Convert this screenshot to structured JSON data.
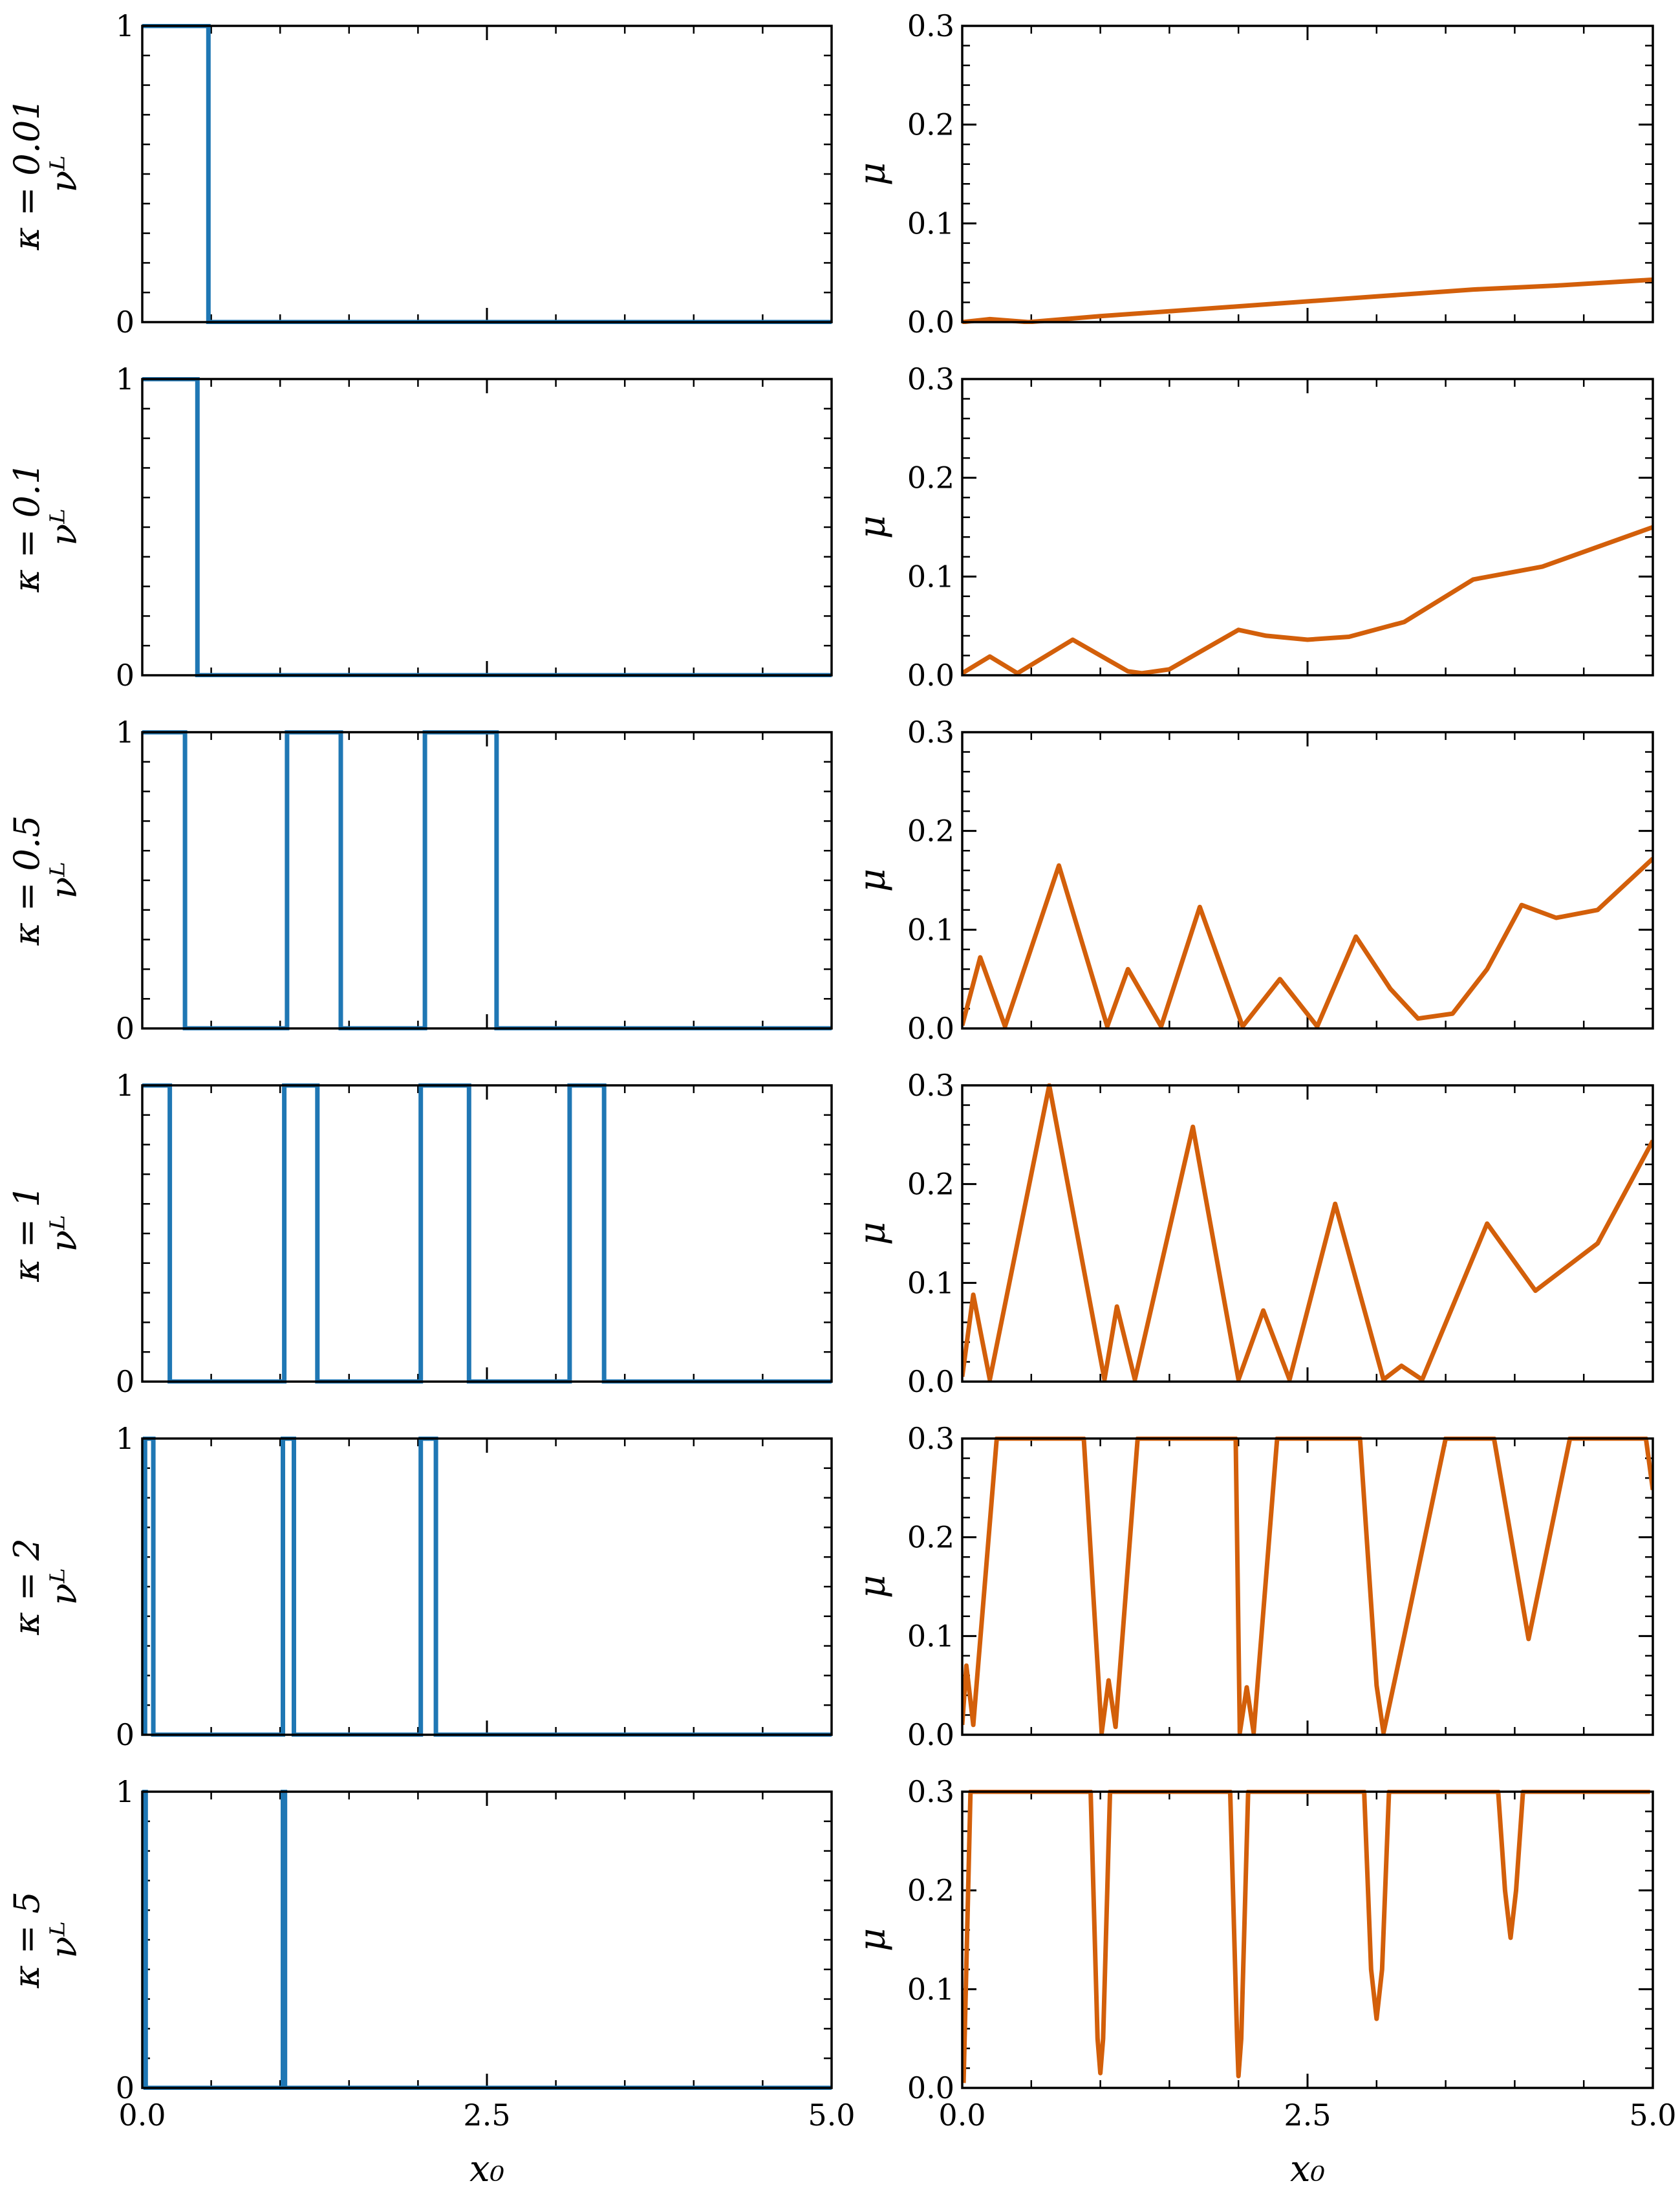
{
  "figure": {
    "x_label": "x₀",
    "left_y_label": "νᴸ",
    "right_y_label": "μ"
  },
  "colors": {
    "nu_line": "#1f77b4",
    "mu_line": "#d35f0a",
    "axes": "#000000"
  },
  "chart_data": [
    {
      "type": "line",
      "panel": "nu",
      "row_label": "κ = 0.01",
      "xlim": [
        0,
        5
      ],
      "ylim": [
        0,
        1
      ],
      "x_ticks": [
        "0.0",
        "2.5",
        "5.0"
      ],
      "y_ticks": [
        "0",
        "1"
      ],
      "series": [
        {
          "values": [
            [
              0,
              1
            ],
            [
              0.48,
              1
            ],
            [
              0.48,
              0
            ],
            [
              5,
              0
            ]
          ]
        }
      ]
    },
    {
      "type": "line",
      "panel": "mu",
      "row_label": "κ = 0.01",
      "xlim": [
        0,
        5
      ],
      "ylim": [
        0,
        0.3
      ],
      "x_ticks": [
        "0.0",
        "2.5",
        "5.0"
      ],
      "y_ticks": [
        "0.0",
        "0.1",
        "0.2",
        "0.3"
      ],
      "series": [
        {
          "values": [
            [
              0,
              0
            ],
            [
              0.2,
              0.003
            ],
            [
              0.48,
              0
            ],
            [
              1,
              0.006
            ],
            [
              2,
              0.016
            ],
            [
              3,
              0.026
            ],
            [
              3.7,
              0.033
            ],
            [
              4.3,
              0.037
            ],
            [
              5,
              0.043
            ]
          ]
        }
      ]
    },
    {
      "type": "line",
      "panel": "nu",
      "row_label": "κ = 0.1",
      "xlim": [
        0,
        5
      ],
      "ylim": [
        0,
        1
      ],
      "x_ticks": [
        "0.0",
        "2.5",
        "5.0"
      ],
      "y_ticks": [
        "0",
        "1"
      ],
      "series": [
        {
          "values": [
            [
              0,
              1
            ],
            [
              0.4,
              1
            ],
            [
              0.4,
              0
            ],
            [
              5,
              0
            ]
          ]
        }
      ]
    },
    {
      "type": "line",
      "panel": "mu",
      "row_label": "κ = 0.1",
      "xlim": [
        0,
        5
      ],
      "ylim": [
        0,
        0.3
      ],
      "x_ticks": [
        "0.0",
        "2.5",
        "5.0"
      ],
      "y_ticks": [
        "0.0",
        "0.1",
        "0.2",
        "0.3"
      ],
      "series": [
        {
          "values": [
            [
              0,
              0.002
            ],
            [
              0.2,
              0.019
            ],
            [
              0.4,
              0.002
            ],
            [
              0.8,
              0.036
            ],
            [
              1.2,
              0.004
            ],
            [
              1.3,
              0.002
            ],
            [
              1.5,
              0.006
            ],
            [
              2,
              0.046
            ],
            [
              2.2,
              0.04
            ],
            [
              2.5,
              0.036
            ],
            [
              2.8,
              0.039
            ],
            [
              3.2,
              0.054
            ],
            [
              3.7,
              0.097
            ],
            [
              4.2,
              0.11
            ],
            [
              5,
              0.15
            ]
          ]
        }
      ]
    },
    {
      "type": "line",
      "panel": "nu",
      "row_label": "κ = 0.5",
      "xlim": [
        0,
        5
      ],
      "ylim": [
        0,
        1
      ],
      "x_ticks": [
        "0.0",
        "2.5",
        "5.0"
      ],
      "y_ticks": [
        "0",
        "1"
      ],
      "series": [
        {
          "values": [
            [
              0,
              1
            ],
            [
              0.31,
              1
            ],
            [
              0.31,
              0
            ],
            [
              1.05,
              0
            ],
            [
              1.05,
              1
            ],
            [
              1.44,
              1
            ],
            [
              1.44,
              0
            ],
            [
              2.05,
              0
            ],
            [
              2.05,
              1
            ],
            [
              2.57,
              1
            ],
            [
              2.57,
              0
            ],
            [
              5,
              0
            ]
          ]
        }
      ]
    },
    {
      "type": "line",
      "panel": "mu",
      "row_label": "κ = 0.5",
      "xlim": [
        0,
        5
      ],
      "ylim": [
        0,
        0.3
      ],
      "x_ticks": [
        "0.0",
        "2.5",
        "5.0"
      ],
      "y_ticks": [
        "0.0",
        "0.1",
        "0.2",
        "0.3"
      ],
      "series": [
        {
          "values": [
            [
              0,
              0.003
            ],
            [
              0.13,
              0.072
            ],
            [
              0.31,
              0.002
            ],
            [
              0.7,
              0.165
            ],
            [
              1.05,
              0.002
            ],
            [
              1.2,
              0.06
            ],
            [
              1.44,
              0.002
            ],
            [
              1.72,
              0.123
            ],
            [
              2.03,
              0.002
            ],
            [
              2.3,
              0.05
            ],
            [
              2.57,
              0.002
            ],
            [
              2.85,
              0.093
            ],
            [
              3.1,
              0.04
            ],
            [
              3.3,
              0.01
            ],
            [
              3.55,
              0.015
            ],
            [
              3.8,
              0.06
            ],
            [
              4.05,
              0.125
            ],
            [
              4.3,
              0.112
            ],
            [
              4.6,
              0.12
            ],
            [
              5,
              0.172
            ]
          ]
        }
      ]
    },
    {
      "type": "line",
      "panel": "nu",
      "row_label": "κ = 1",
      "xlim": [
        0,
        5
      ],
      "ylim": [
        0,
        1
      ],
      "x_ticks": [
        "0.0",
        "2.5",
        "5.0"
      ],
      "y_ticks": [
        "0",
        "1"
      ],
      "series": [
        {
          "values": [
            [
              0,
              1
            ],
            [
              0.2,
              1
            ],
            [
              0.2,
              0
            ],
            [
              1.03,
              0
            ],
            [
              1.03,
              1
            ],
            [
              1.27,
              1
            ],
            [
              1.27,
              0
            ],
            [
              2.02,
              0
            ],
            [
              2.02,
              1
            ],
            [
              2.37,
              1
            ],
            [
              2.37,
              0
            ],
            [
              3.1,
              0
            ],
            [
              3.1,
              1
            ],
            [
              3.35,
              1
            ],
            [
              3.35,
              0
            ],
            [
              5,
              0
            ]
          ]
        }
      ]
    },
    {
      "type": "line",
      "panel": "mu",
      "row_label": "κ = 1",
      "xlim": [
        0,
        5
      ],
      "ylim": [
        0,
        0.3
      ],
      "x_ticks": [
        "0.0",
        "2.5",
        "5.0"
      ],
      "y_ticks": [
        "0.0",
        "0.1",
        "0.2",
        "0.3"
      ],
      "series": [
        {
          "values": [
            [
              0,
              0.005
            ],
            [
              0.08,
              0.088
            ],
            [
              0.2,
              0.002
            ],
            [
              0.63,
              0.3
            ],
            [
              1.03,
              0.002
            ],
            [
              1.12,
              0.076
            ],
            [
              1.25,
              0.002
            ],
            [
              1.67,
              0.258
            ],
            [
              2.0,
              0.002
            ],
            [
              2.18,
              0.072
            ],
            [
              2.37,
              0.002
            ],
            [
              2.7,
              0.18
            ],
            [
              3.05,
              0.002
            ],
            [
              3.18,
              0.016
            ],
            [
              3.33,
              0.002
            ],
            [
              3.8,
              0.16
            ],
            [
              4.15,
              0.092
            ],
            [
              4.6,
              0.14
            ],
            [
              5,
              0.244
            ]
          ]
        }
      ]
    },
    {
      "type": "line",
      "panel": "nu",
      "row_label": "κ = 2",
      "xlim": [
        0,
        5
      ],
      "ylim": [
        0,
        1
      ],
      "x_ticks": [
        "0.0",
        "2.5",
        "5.0"
      ],
      "y_ticks": [
        "0",
        "1"
      ],
      "series": [
        {
          "values": [
            [
              0.02,
              0
            ],
            [
              0.02,
              1
            ],
            [
              0.08,
              1
            ],
            [
              0.08,
              0
            ],
            [
              1.02,
              0
            ],
            [
              1.02,
              1
            ],
            [
              1.1,
              1
            ],
            [
              1.1,
              0
            ],
            [
              2.02,
              0
            ],
            [
              2.02,
              1
            ],
            [
              2.13,
              1
            ],
            [
              2.13,
              0
            ],
            [
              5,
              0
            ]
          ]
        }
      ]
    },
    {
      "type": "line",
      "panel": "mu",
      "row_label": "κ = 2",
      "xlim": [
        0,
        5
      ],
      "ylim": [
        0,
        0.3
      ],
      "x_ticks": [
        "0.0",
        "2.5",
        "5.0"
      ],
      "y_ticks": [
        "0.0",
        "0.1",
        "0.2",
        "0.3"
      ],
      "series": [
        {
          "values": [
            [
              0,
              0.01
            ],
            [
              0.03,
              0.07
            ],
            [
              0.08,
              0.01
            ],
            [
              0.25,
              0.3
            ],
            [
              0.88,
              0.3
            ],
            [
              1.01,
              0.002
            ],
            [
              1.06,
              0.055
            ],
            [
              1.11,
              0.008
            ],
            [
              1.27,
              0.3
            ],
            [
              1.98,
              0.3
            ],
            [
              2.01,
              0.002
            ],
            [
              2.06,
              0.048
            ],
            [
              2.11,
              0.002
            ],
            [
              2.28,
              0.3
            ],
            [
              2.88,
              0.3
            ],
            [
              3.0,
              0.05
            ],
            [
              3.05,
              0.002
            ],
            [
              3.2,
              0.1
            ],
            [
              3.5,
              0.3
            ],
            [
              3.85,
              0.3
            ],
            [
              4.1,
              0.097
            ],
            [
              4.4,
              0.3
            ],
            [
              4.95,
              0.3
            ],
            [
              5,
              0.248
            ]
          ]
        }
      ]
    },
    {
      "type": "line",
      "panel": "nu",
      "row_label": "κ = 5",
      "xlim": [
        0,
        5
      ],
      "ylim": [
        0,
        1
      ],
      "x_ticks": [
        "0.0",
        "2.5",
        "5.0"
      ],
      "y_ticks": [
        "0",
        "1"
      ],
      "series": [
        {
          "values": [
            [
              0.01,
              0
            ],
            [
              0.01,
              1
            ],
            [
              0.025,
              1
            ],
            [
              0.025,
              0
            ],
            [
              1.02,
              0
            ],
            [
              1.02,
              1
            ],
            [
              1.035,
              1
            ],
            [
              1.035,
              0
            ],
            [
              5,
              0
            ]
          ]
        }
      ]
    },
    {
      "type": "line",
      "panel": "mu",
      "row_label": "κ = 5",
      "xlim": [
        0,
        5
      ],
      "ylim": [
        0,
        0.3
      ],
      "x_ticks": [
        "0.0",
        "2.5",
        "5.0"
      ],
      "y_ticks": [
        "0.0",
        "0.1",
        "0.2",
        "0.3"
      ],
      "series": [
        {
          "values": [
            [
              0.01,
              0.005
            ],
            [
              0.06,
              0.3
            ],
            [
              0.93,
              0.3
            ],
            [
              0.98,
              0.05
            ],
            [
              1.0,
              0.015
            ],
            [
              1.02,
              0.05
            ],
            [
              1.07,
              0.3
            ],
            [
              1.94,
              0.3
            ],
            [
              1.99,
              0.05
            ],
            [
              2.0,
              0.012
            ],
            [
              2.02,
              0.05
            ],
            [
              2.07,
              0.3
            ],
            [
              2.91,
              0.3
            ],
            [
              2.96,
              0.12
            ],
            [
              3.0,
              0.07
            ],
            [
              3.04,
              0.12
            ],
            [
              3.09,
              0.3
            ],
            [
              3.88,
              0.3
            ],
            [
              3.93,
              0.2
            ],
            [
              3.97,
              0.152
            ],
            [
              4.01,
              0.2
            ],
            [
              4.06,
              0.3
            ],
            [
              4.98,
              0.3
            ]
          ]
        }
      ]
    }
  ]
}
